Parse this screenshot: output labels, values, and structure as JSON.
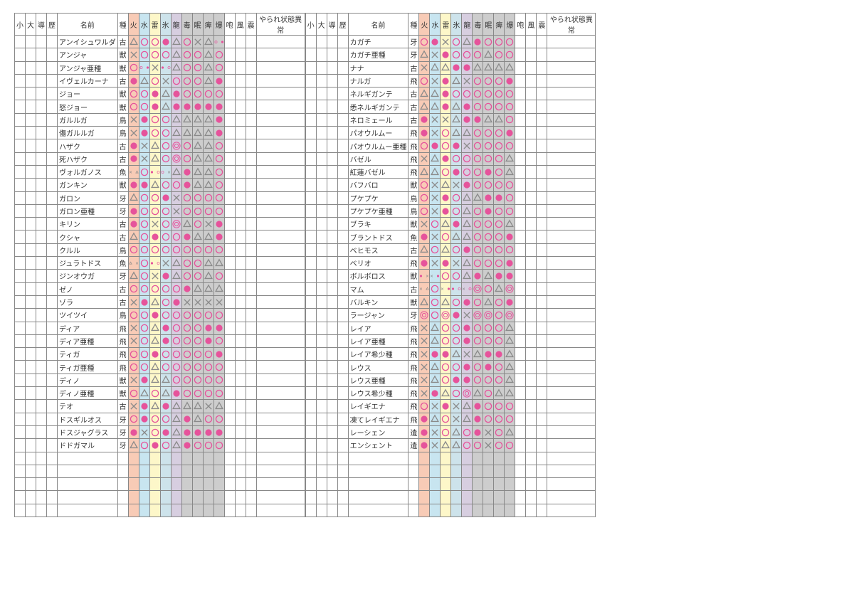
{
  "colors": {
    "pink": "#e6539b",
    "grey": "#8a8a8a",
    "fire": "#f8cbb6",
    "water": "#c8e5f0",
    "thunder": "#fdf7c9",
    "ice": "#cde3eb",
    "dragon": "#d7cee0",
    "status": "#cdcdcd"
  },
  "headers": {
    "small": "小",
    "large": "大",
    "guide": "導",
    "hist": "歴",
    "name": "名前",
    "type": "種",
    "fire": "火",
    "water": "水",
    "thun": "雷",
    "ice": "氷",
    "drag": "龍",
    "pois": "毒",
    "sleep": "眠",
    "para": "痺",
    "blast": "爆",
    "roar": "咆",
    "wind": "風",
    "trem": "震",
    "abn": "やられ状態異常"
  },
  "legend": {
    "s": "◉ solid",
    "o": "○ hollow",
    "t": "△ triangle",
    "x": "×",
    "d": "◎ double",
    "-": "blank"
  },
  "emptyRows": 5,
  "left": [
    {
      "n": "アンイシュワルダ",
      "t": "古",
      "e": [
        "t",
        "o",
        "o",
        "s",
        "t"
      ],
      "s": [
        "o",
        "x",
        "t",
        "split:o/s"
      ]
    },
    {
      "n": "アンジャ",
      "t": "獣",
      "e": [
        "x",
        "o",
        "o",
        "o",
        "t"
      ],
      "s": [
        "o",
        "o",
        "t",
        "o"
      ]
    },
    {
      "n": "アンジャ亜種",
      "t": "獣",
      "e": [
        "o",
        "split:o/s",
        "x",
        "split:s/o",
        "t"
      ],
      "s": [
        "o",
        "o",
        "t",
        "o"
      ]
    },
    {
      "n": "イヴェルカーナ",
      "t": "古",
      "e": [
        "s",
        "t",
        "o",
        "x",
        "o"
      ],
      "s": [
        "o",
        "o",
        "t",
        "s"
      ]
    },
    {
      "n": "ジョー",
      "t": "獣",
      "e": [
        "o",
        "o",
        "s",
        "t",
        "s"
      ],
      "s": [
        "o",
        "o",
        "o",
        "o"
      ]
    },
    {
      "n": "怒ジョー",
      "t": "獣",
      "e": [
        "o",
        "o",
        "s",
        "t",
        "s"
      ],
      "s": [
        "s",
        "s",
        "s",
        "s"
      ]
    },
    {
      "n": "ガルルガ",
      "t": "鳥",
      "e": [
        "x",
        "s",
        "o",
        "o",
        "t"
      ],
      "s": [
        "t",
        "t",
        "t",
        "s"
      ]
    },
    {
      "n": "傷ガルルガ",
      "t": "鳥",
      "e": [
        "x",
        "s",
        "o",
        "o",
        "t"
      ],
      "s": [
        "t",
        "t",
        "t",
        "s"
      ]
    },
    {
      "n": "ハザク",
      "t": "古",
      "e": [
        "s",
        "x",
        "t",
        "o",
        "d"
      ],
      "s": [
        "o",
        "t",
        "t",
        "o"
      ]
    },
    {
      "n": "死ハザク",
      "t": "古",
      "e": [
        "s",
        "x",
        "t",
        "o",
        "d"
      ],
      "s": [
        "o",
        "t",
        "t",
        "o"
      ]
    },
    {
      "n": "ヴォルガノス",
      "t": "魚",
      "e": [
        "split:x/t",
        "o",
        "split:s/o",
        "split:o/x",
        "t"
      ],
      "s": [
        "s",
        "t",
        "t",
        "o"
      ]
    },
    {
      "n": "ガンキン",
      "t": "獣",
      "e": [
        "s",
        "s",
        "t",
        "o",
        "o"
      ],
      "s": [
        "s",
        "t",
        "t",
        "o"
      ]
    },
    {
      "n": "ガロン",
      "t": "牙",
      "e": [
        "t",
        "o",
        "o",
        "s",
        "x"
      ],
      "s": [
        "o",
        "o",
        "o",
        "o"
      ]
    },
    {
      "n": "ガロン亜種",
      "t": "牙",
      "e": [
        "s",
        "o",
        "o",
        "o",
        "x"
      ],
      "s": [
        "o",
        "o",
        "o",
        "o"
      ]
    },
    {
      "n": "キリン",
      "t": "古",
      "e": [
        "s",
        "o",
        "x",
        "o",
        "d"
      ],
      "s": [
        "t",
        "o",
        "x",
        "s"
      ]
    },
    {
      "n": "クシャ",
      "t": "古",
      "e": [
        "t",
        "o",
        "s",
        "o",
        "o"
      ],
      "s": [
        "s",
        "t",
        "t",
        "s"
      ]
    },
    {
      "n": "クルル",
      "t": "鳥",
      "e": [
        "o",
        "o",
        "o",
        "o",
        "o"
      ],
      "s": [
        "o",
        "o",
        "o",
        "o"
      ]
    },
    {
      "n": "ジュラトドス",
      "t": "魚",
      "e": [
        "split:t/x",
        "o",
        "split:s/o",
        "x",
        "t"
      ],
      "s": [
        "o",
        "o",
        "t",
        "t"
      ]
    },
    {
      "n": "ジンオウガ",
      "t": "牙",
      "e": [
        "t",
        "o",
        "x",
        "s",
        "t"
      ],
      "s": [
        "o",
        "o",
        "t",
        "o"
      ]
    },
    {
      "n": "ゼノ",
      "t": "古",
      "e": [
        "o",
        "o",
        "o",
        "o",
        "o"
      ],
      "s": [
        "s",
        "t",
        "t",
        "t"
      ]
    },
    {
      "n": "ゾラ",
      "t": "古",
      "e": [
        "x",
        "s",
        "t",
        "o",
        "s"
      ],
      "s": [
        "x",
        "x",
        "x",
        "x"
      ]
    },
    {
      "n": "ツイツイ",
      "t": "鳥",
      "e": [
        "o",
        "o",
        "s",
        "o",
        "o"
      ],
      "s": [
        "o",
        "o",
        "o",
        "o"
      ]
    },
    {
      "n": "ディア",
      "t": "飛",
      "e": [
        "x",
        "o",
        "t",
        "s",
        "o"
      ],
      "s": [
        "o",
        "o",
        "s",
        "s"
      ]
    },
    {
      "n": "ディア亜種",
      "t": "飛",
      "e": [
        "x",
        "o",
        "t",
        "s",
        "o"
      ],
      "s": [
        "o",
        "o",
        "s",
        "o"
      ]
    },
    {
      "n": "ティガ",
      "t": "飛",
      "e": [
        "o",
        "o",
        "s",
        "o",
        "o"
      ],
      "s": [
        "o",
        "o",
        "o",
        "s"
      ]
    },
    {
      "n": "ティガ亜種",
      "t": "飛",
      "e": [
        "o",
        "o",
        "t",
        "o",
        "o"
      ],
      "s": [
        "o",
        "o",
        "o",
        "o"
      ]
    },
    {
      "n": "ディノ",
      "t": "獣",
      "e": [
        "x",
        "s",
        "t",
        "t",
        "o"
      ],
      "s": [
        "o",
        "o",
        "o",
        "o"
      ]
    },
    {
      "n": "ディノ亜種",
      "t": "獣",
      "e": [
        "o",
        "t",
        "o",
        "t",
        "s"
      ],
      "s": [
        "o",
        "o",
        "o",
        "o"
      ]
    },
    {
      "n": "テオ",
      "t": "古",
      "e": [
        "x",
        "s",
        "t",
        "s",
        "t"
      ],
      "s": [
        "t",
        "t",
        "x",
        "t"
      ]
    },
    {
      "n": "ドスギルオス",
      "t": "牙",
      "e": [
        "o",
        "s",
        "o",
        "o",
        "t"
      ],
      "s": [
        "s",
        "t",
        "o",
        "o"
      ]
    },
    {
      "n": "ドスジャグラス",
      "t": "牙",
      "e": [
        "s",
        "x",
        "o",
        "s",
        "t"
      ],
      "s": [
        "s",
        "s",
        "s",
        "s"
      ]
    },
    {
      "n": "ドドガマル",
      "t": "牙",
      "e": [
        "t",
        "o",
        "s",
        "o",
        "t"
      ],
      "s": [
        "s",
        "o",
        "o",
        "o"
      ]
    }
  ],
  "right": [
    {
      "n": "カガチ",
      "t": "牙",
      "e": [
        "o",
        "s",
        "x",
        "o",
        "t"
      ],
      "s": [
        "s",
        "o",
        "o",
        "o"
      ]
    },
    {
      "n": "カガチ亜種",
      "t": "牙",
      "e": [
        "t",
        "x",
        "s",
        "o",
        "o"
      ],
      "s": [
        "o",
        "t",
        "o",
        "o"
      ]
    },
    {
      "n": "ナナ",
      "t": "古",
      "e": [
        "x",
        "t",
        "t",
        "s",
        "s"
      ],
      "s": [
        "t",
        "t",
        "t",
        "t"
      ]
    },
    {
      "n": "ナルガ",
      "t": "飛",
      "e": [
        "o",
        "x",
        "s",
        "t",
        "x"
      ],
      "s": [
        "o",
        "o",
        "o",
        "s"
      ]
    },
    {
      "n": "ネルギガンテ",
      "t": "古",
      "e": [
        "t",
        "t",
        "s",
        "o",
        "o"
      ],
      "s": [
        "o",
        "o",
        "o",
        "o"
      ]
    },
    {
      "n": "悉ネルギガンテ",
      "t": "古",
      "e": [
        "t",
        "t",
        "s",
        "t",
        "s"
      ],
      "s": [
        "o",
        "o",
        "o",
        "o"
      ]
    },
    {
      "n": "ネロミェール",
      "t": "古",
      "e": [
        "s",
        "x",
        "x",
        "t",
        "s"
      ],
      "s": [
        "s",
        "t",
        "t",
        "o"
      ]
    },
    {
      "n": "パオウルムー",
      "t": "飛",
      "e": [
        "s",
        "x",
        "o",
        "t",
        "t"
      ],
      "s": [
        "o",
        "o",
        "o",
        "s"
      ]
    },
    {
      "n": "パオウルムー亜種",
      "t": "飛",
      "e": [
        "o",
        "s",
        "o",
        "s",
        "x"
      ],
      "s": [
        "o",
        "o",
        "o",
        "o"
      ]
    },
    {
      "n": "バゼル",
      "t": "飛",
      "e": [
        "x",
        "t",
        "s",
        "o",
        "o"
      ],
      "s": [
        "o",
        "o",
        "o",
        "t"
      ]
    },
    {
      "n": "紅蓮バゼル",
      "t": "飛",
      "e": [
        "t",
        "t",
        "o",
        "s",
        "o"
      ],
      "s": [
        "o",
        "s",
        "o",
        "t"
      ]
    },
    {
      "n": "バフバロ",
      "t": "獣",
      "e": [
        "o",
        "x",
        "t",
        "x",
        "s"
      ],
      "s": [
        "o",
        "o",
        "o",
        "o"
      ]
    },
    {
      "n": "プケプケ",
      "t": "鳥",
      "e": [
        "o",
        "x",
        "s",
        "o",
        "t"
      ],
      "s": [
        "t",
        "s",
        "s",
        "o"
      ]
    },
    {
      "n": "プケプケ亜種",
      "t": "鳥",
      "e": [
        "o",
        "x",
        "s",
        "o",
        "t"
      ],
      "s": [
        "o",
        "s",
        "o",
        "o"
      ]
    },
    {
      "n": "ブラキ",
      "t": "獣",
      "e": [
        "x",
        "o",
        "t",
        "s",
        "t"
      ],
      "s": [
        "o",
        "o",
        "o",
        "t"
      ]
    },
    {
      "n": "ブラントドス",
      "t": "魚",
      "e": [
        "s",
        "x",
        "o",
        "t",
        "t"
      ],
      "s": [
        "o",
        "o",
        "o",
        "s"
      ]
    },
    {
      "n": "ベヒモス",
      "t": "古",
      "e": [
        "t",
        "o",
        "t",
        "o",
        "s"
      ],
      "s": [
        "o",
        "o",
        "o",
        "o"
      ]
    },
    {
      "n": "ベリオ",
      "t": "飛",
      "e": [
        "s",
        "x",
        "s",
        "x",
        "t"
      ],
      "s": [
        "o",
        "o",
        "o",
        "s"
      ]
    },
    {
      "n": "ボルボロス",
      "t": "獣",
      "e": [
        "split:s/x",
        "split:x/s",
        "o",
        "o",
        "t"
      ],
      "s": [
        "s",
        "t",
        "s",
        "s"
      ]
    },
    {
      "n": "マム",
      "t": "古",
      "e": [
        "split:x/t",
        "o",
        "split:x/s",
        "split:s/o",
        "split:x/o"
      ],
      "s": [
        "d",
        "o",
        "t",
        "d"
      ]
    },
    {
      "n": "バルキン",
      "t": "獣",
      "e": [
        "t",
        "o",
        "t",
        "o",
        "s"
      ],
      "s": [
        "o",
        "t",
        "o",
        "s"
      ]
    },
    {
      "n": "ラージャン",
      "t": "牙",
      "e": [
        "d",
        "o",
        "d",
        "s",
        "x"
      ],
      "s": [
        "d",
        "d",
        "o",
        "d"
      ]
    },
    {
      "n": "レイア",
      "t": "飛",
      "e": [
        "x",
        "t",
        "o",
        "o",
        "s"
      ],
      "s": [
        "o",
        "o",
        "o",
        "t"
      ]
    },
    {
      "n": "レイア亜種",
      "t": "飛",
      "e": [
        "x",
        "t",
        "o",
        "o",
        "s"
      ],
      "s": [
        "o",
        "o",
        "o",
        "t"
      ]
    },
    {
      "n": "レイア希少種",
      "t": "飛",
      "e": [
        "x",
        "s",
        "s",
        "t",
        "x"
      ],
      "s": [
        "t",
        "s",
        "s",
        "t"
      ]
    },
    {
      "n": "レウス",
      "t": "飛",
      "e": [
        "x",
        "t",
        "o",
        "o",
        "s"
      ],
      "s": [
        "o",
        "s",
        "o",
        "t"
      ]
    },
    {
      "n": "レウス亜種",
      "t": "飛",
      "e": [
        "x",
        "t",
        "o",
        "s",
        "s"
      ],
      "s": [
        "o",
        "o",
        "o",
        "t"
      ]
    },
    {
      "n": "レウス希少種",
      "t": "飛",
      "e": [
        "x",
        "s",
        "t",
        "o",
        "d"
      ],
      "s": [
        "t",
        "o",
        "t",
        "t"
      ]
    },
    {
      "n": "レイギエナ",
      "t": "飛",
      "e": [
        "o",
        "x",
        "s",
        "x",
        "t"
      ],
      "s": [
        "s",
        "o",
        "o",
        "o"
      ]
    },
    {
      "n": "凍てレイギエナ",
      "t": "飛",
      "e": [
        "s",
        "t",
        "o",
        "x",
        "t"
      ],
      "s": [
        "s",
        "o",
        "o",
        "o"
      ]
    },
    {
      "n": "レーシェン",
      "t": "遺",
      "e": [
        "s",
        "x",
        "o",
        "t",
        "o"
      ],
      "s": [
        "s",
        "x",
        "o",
        "t"
      ]
    },
    {
      "n": "エンシェント",
      "t": "遺",
      "e": [
        "s",
        "x",
        "t",
        "t",
        "o"
      ],
      "s": [
        "o",
        "x",
        "o",
        "o"
      ]
    }
  ]
}
